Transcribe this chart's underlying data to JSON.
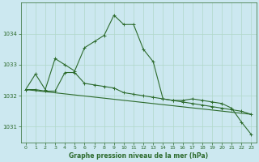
{
  "background_color": "#cce8f0",
  "grid_color": "#b0d8c8",
  "line_color": "#2d6b2d",
  "title": "Graphe pression niveau de la mer (hPa)",
  "xlim": [
    -0.5,
    23.5
  ],
  "ylim": [
    1030.5,
    1035.0
  ],
  "yticks": [
    1031,
    1032,
    1033,
    1034
  ],
  "xticks": [
    0,
    1,
    2,
    3,
    4,
    5,
    6,
    7,
    8,
    9,
    10,
    11,
    12,
    13,
    14,
    15,
    16,
    17,
    18,
    19,
    20,
    21,
    22,
    23
  ],
  "series_main": {
    "x": [
      0,
      1,
      2,
      3,
      4,
      5,
      6,
      7,
      8,
      9,
      10,
      11,
      12,
      13,
      14,
      15,
      16,
      17,
      18,
      19,
      20,
      21,
      22,
      23
    ],
    "y": [
      1032.2,
      1032.7,
      1032.2,
      1033.2,
      1033.0,
      1032.8,
      1033.55,
      1033.75,
      1033.95,
      1034.6,
      1034.3,
      1034.3,
      1033.5,
      1033.1,
      1031.9,
      1031.85,
      1031.85,
      1031.9,
      1031.85,
      1031.8,
      1031.75,
      1031.6,
      1031.15,
      1030.75
    ]
  },
  "series_flat": {
    "x": [
      0,
      1,
      2,
      3,
      4,
      5,
      6,
      7,
      8,
      9,
      10,
      11,
      12,
      13,
      14,
      15,
      16,
      17,
      18,
      19,
      20,
      21,
      22,
      23
    ],
    "y": [
      1032.2,
      1032.2,
      1032.15,
      1032.15,
      1032.75,
      1032.75,
      1032.4,
      1032.35,
      1032.3,
      1032.25,
      1032.1,
      1032.05,
      1032.0,
      1031.95,
      1031.9,
      1031.85,
      1031.8,
      1031.75,
      1031.7,
      1031.65,
      1031.6,
      1031.55,
      1031.5,
      1031.4
    ]
  },
  "series_diag": {
    "x": [
      0,
      23
    ],
    "y": [
      1032.2,
      1031.4
    ]
  }
}
